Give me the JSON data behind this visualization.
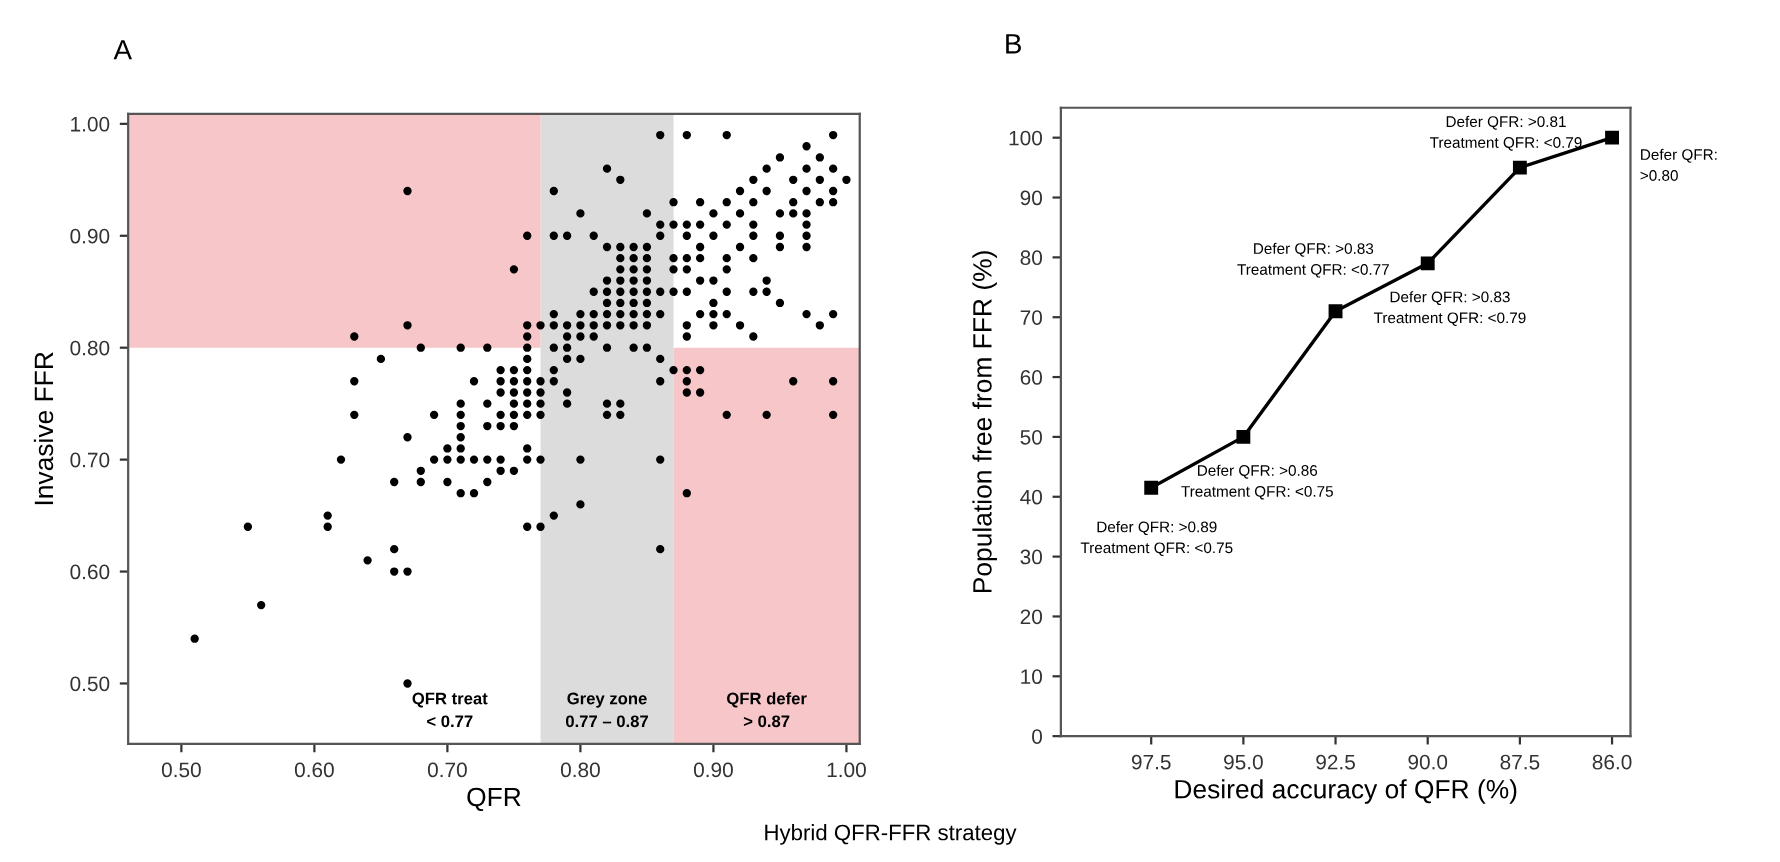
{
  "chart_data": [
    {
      "type": "scatter",
      "title": "A",
      "xlabel": "QFR",
      "ylabel": "Invasive FFR",
      "xlim": [
        0.46,
        1.01
      ],
      "ylim": [
        0.446,
        1.009
      ],
      "xticks": [
        {
          "value": 0.5,
          "label": "0.50"
        },
        {
          "value": 0.6,
          "label": "0.60"
        },
        {
          "value": 0.7,
          "label": "0.70"
        },
        {
          "value": 0.8,
          "label": "0.80"
        },
        {
          "value": 0.9,
          "label": "0.90"
        },
        {
          "value": 1.0,
          "label": "1.00"
        }
      ],
      "yticks": [
        {
          "value": 0.5,
          "label": "0.50"
        },
        {
          "value": 0.6,
          "label": "0.60"
        },
        {
          "value": 0.7,
          "label": "0.70"
        },
        {
          "value": 0.8,
          "label": "0.80"
        },
        {
          "value": 0.9,
          "label": "0.90"
        },
        {
          "value": 1.0,
          "label": "1.00"
        }
      ],
      "grid": false,
      "marker": "circle",
      "bands": [
        {
          "axis": "x",
          "from": 0.77,
          "to": 0.87,
          "label": "Grey zone\n0.77 – 0.87",
          "color": "#dcdcdc"
        },
        {
          "axis": "y",
          "from": 0.8,
          "to": 1.009,
          "color": "#f6c6c8"
        },
        {
          "axis": "y",
          "from": 0.446,
          "to": 0.8,
          "color": "#f6c6c8"
        }
      ],
      "annotations": [
        "QFR treat\n< 0.77",
        "QFR defer\n> 0.87"
      ],
      "series": [
        {
          "color": "#000000",
          "x": [
            0.67,
            0.75,
            0.67,
            0.63,
            0.68,
            0.71,
            0.73,
            0.65,
            0.74,
            0.75,
            0.63,
            0.72,
            0.74,
            0.75,
            0.74,
            0.75,
            0.71,
            0.73,
            0.75,
            0.63,
            0.69,
            0.71,
            0.74,
            0.75,
            0.71,
            0.73,
            0.74,
            0.75,
            0.67,
            0.71,
            0.7,
            0.71,
            0.62,
            0.69,
            0.7,
            0.71,
            0.72,
            0.73,
            0.74,
            0.68,
            0.74,
            0.75,
            0.66,
            0.68,
            0.7,
            0.73,
            0.71,
            0.72,
            0.61,
            0.55,
            0.61,
            0.66,
            0.64,
            0.66,
            0.67,
            0.56,
            0.51,
            0.67,
            0.86,
            0.88,
            0.91,
            0.99,
            0.97,
            0.95,
            0.98,
            0.82,
            0.94,
            0.97,
            0.99,
            0.83,
            0.93,
            0.96,
            0.98,
            1.0,
            0.78,
            0.92,
            0.94,
            0.97,
            0.99,
            0.87,
            0.89,
            0.91,
            0.93,
            0.96,
            0.98,
            0.99,
            0.8,
            0.85,
            0.9,
            0.92,
            0.95,
            0.96,
            0.97,
            0.86,
            0.87,
            0.88,
            0.89,
            0.91,
            0.93,
            0.97,
            0.76,
            0.78,
            0.79,
            0.81,
            0.86,
            0.88,
            0.9,
            0.93,
            0.95,
            0.97,
            0.82,
            0.83,
            0.84,
            0.85,
            0.89,
            0.92,
            0.95,
            0.97,
            0.83,
            0.84,
            0.85,
            0.87,
            0.88,
            0.89,
            0.91,
            0.93,
            0.83,
            0.84,
            0.85,
            0.87,
            0.88,
            0.91,
            0.82,
            0.83,
            0.84,
            0.85,
            0.89,
            0.9,
            0.94,
            0.81,
            0.82,
            0.83,
            0.84,
            0.85,
            0.86,
            0.87,
            0.88,
            0.91,
            0.93,
            0.94,
            0.82,
            0.83,
            0.84,
            0.85,
            0.9,
            0.95,
            0.78,
            0.8,
            0.81,
            0.82,
            0.83,
            0.84,
            0.85,
            0.86,
            0.89,
            0.9,
            0.91,
            0.97,
            0.99,
            0.76,
            0.77,
            0.78,
            0.79,
            0.8,
            0.81,
            0.82,
            0.83,
            0.84,
            0.85,
            0.88,
            0.9,
            0.92,
            0.98,
            0.76,
            0.79,
            0.8,
            0.81,
            0.88,
            0.93,
            0.76,
            0.78,
            0.79,
            0.82,
            0.84,
            0.85,
            0.76,
            0.79,
            0.8,
            0.86,
            0.76,
            0.78,
            0.87,
            0.88,
            0.89,
            0.76,
            0.77,
            0.78,
            0.86,
            0.88,
            0.96,
            0.99,
            0.76,
            0.77,
            0.79,
            0.88,
            0.89,
            0.76,
            0.77,
            0.79,
            0.82,
            0.83,
            0.76,
            0.77,
            0.82,
            0.83,
            0.91,
            0.94,
            0.99,
            0.76,
            0.76,
            0.77,
            0.8,
            0.86,
            0.88,
            0.8,
            0.78,
            0.76,
            0.77,
            0.86
          ],
          "values": [
            0.94,
            0.87,
            0.82,
            0.81,
            0.8,
            0.8,
            0.8,
            0.79,
            0.78,
            0.78,
            0.77,
            0.77,
            0.77,
            0.77,
            0.76,
            0.76,
            0.75,
            0.75,
            0.75,
            0.74,
            0.74,
            0.74,
            0.74,
            0.74,
            0.73,
            0.73,
            0.73,
            0.73,
            0.72,
            0.72,
            0.71,
            0.71,
            0.7,
            0.7,
            0.7,
            0.7,
            0.7,
            0.7,
            0.7,
            0.69,
            0.69,
            0.69,
            0.68,
            0.68,
            0.68,
            0.68,
            0.67,
            0.67,
            0.65,
            0.64,
            0.64,
            0.62,
            0.61,
            0.6,
            0.6,
            0.57,
            0.54,
            0.5,
            0.99,
            0.99,
            0.99,
            0.99,
            0.98,
            0.97,
            0.97,
            0.96,
            0.96,
            0.96,
            0.96,
            0.95,
            0.95,
            0.95,
            0.95,
            0.95,
            0.94,
            0.94,
            0.94,
            0.94,
            0.94,
            0.93,
            0.93,
            0.93,
            0.93,
            0.93,
            0.93,
            0.93,
            0.92,
            0.92,
            0.92,
            0.92,
            0.92,
            0.92,
            0.92,
            0.91,
            0.91,
            0.91,
            0.91,
            0.91,
            0.91,
            0.91,
            0.9,
            0.9,
            0.9,
            0.9,
            0.9,
            0.9,
            0.9,
            0.9,
            0.9,
            0.9,
            0.89,
            0.89,
            0.89,
            0.89,
            0.89,
            0.89,
            0.89,
            0.89,
            0.88,
            0.88,
            0.88,
            0.88,
            0.88,
            0.88,
            0.88,
            0.88,
            0.87,
            0.87,
            0.87,
            0.87,
            0.87,
            0.87,
            0.86,
            0.86,
            0.86,
            0.86,
            0.86,
            0.86,
            0.86,
            0.85,
            0.85,
            0.85,
            0.85,
            0.85,
            0.85,
            0.85,
            0.85,
            0.85,
            0.85,
            0.85,
            0.84,
            0.84,
            0.84,
            0.84,
            0.84,
            0.84,
            0.83,
            0.83,
            0.83,
            0.83,
            0.83,
            0.83,
            0.83,
            0.83,
            0.83,
            0.83,
            0.83,
            0.83,
            0.83,
            0.82,
            0.82,
            0.82,
            0.82,
            0.82,
            0.82,
            0.82,
            0.82,
            0.82,
            0.82,
            0.82,
            0.82,
            0.82,
            0.82,
            0.81,
            0.81,
            0.81,
            0.81,
            0.81,
            0.81,
            0.8,
            0.8,
            0.8,
            0.8,
            0.8,
            0.8,
            0.79,
            0.79,
            0.79,
            0.79,
            0.78,
            0.78,
            0.78,
            0.78,
            0.78,
            0.77,
            0.77,
            0.77,
            0.77,
            0.77,
            0.77,
            0.77,
            0.76,
            0.76,
            0.76,
            0.76,
            0.76,
            0.75,
            0.75,
            0.75,
            0.75,
            0.75,
            0.74,
            0.74,
            0.74,
            0.74,
            0.74,
            0.74,
            0.74,
            0.71,
            0.7,
            0.7,
            0.7,
            0.7,
            0.67,
            0.66,
            0.65,
            0.64,
            0.64,
            0.62
          ]
        }
      ]
    },
    {
      "type": "line",
      "title": "B",
      "xlabel": "Desired accuracy of QFR (%)",
      "ylabel": "Population free from FFR (%)",
      "categories": [
        "97.5",
        "95.0",
        "92.5",
        "90.0",
        "87.5",
        "86.0"
      ],
      "ylim": [
        0,
        105
      ],
      "yticks": [
        0,
        10,
        20,
        30,
        40,
        50,
        60,
        70,
        80,
        90,
        100
      ],
      "grid": false,
      "marker": "square",
      "line_style": "solid",
      "series": [
        {
          "color": "#000000",
          "values": [
            41.5,
            50,
            71,
            79,
            95,
            100
          ]
        }
      ],
      "annotations": [
        {
          "text": "Defer QFR: >0.89\nTreatment QFR: <0.75",
          "x": "97.5",
          "y": 41.5
        },
        {
          "text": "Defer QFR: >0.86\nTreatment QFR: <0.75",
          "x": "95.0",
          "y": 50
        },
        {
          "text": "Defer QFR: >0.83\nTreatment QFR: <0.77",
          "x": "92.5",
          "y": 71
        },
        {
          "text": "Defer QFR: >0.83\nTreatment QFR: <0.79",
          "x": "90.0",
          "y": 79
        },
        {
          "text": "Defer QFR: >0.81\nTreatment QFR: <0.79",
          "x": "87.5",
          "y": 95
        },
        {
          "text": "Defer QFR:\n>0.80",
          "x": "86.0",
          "y": 100
        },
        "Hybrid QFR-FFR strategy"
      ]
    }
  ]
}
